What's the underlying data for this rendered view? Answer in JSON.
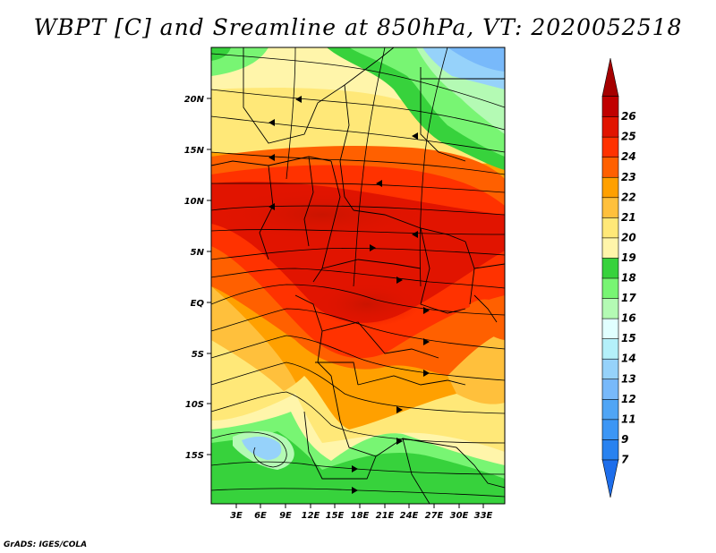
{
  "title": "WBPT [C] and Sreamline at 850hPa, VT: 2020052518",
  "credit": "GrADS: IGES/COLA",
  "lat_labels": [
    "20N",
    "15N",
    "10N",
    "5N",
    "EQ",
    "5S",
    "10S",
    "15S"
  ],
  "lon_labels": [
    "3E",
    "6E",
    "9E",
    "12E",
    "15E",
    "18E",
    "21E",
    "24E",
    "27E",
    "30E",
    "33E"
  ],
  "colorbar": {
    "labels": [
      "7",
      "9",
      "11",
      "12",
      "13",
      "14",
      "15",
      "16",
      "17",
      "18",
      "19",
      "20",
      "21",
      "22",
      "23",
      "24",
      "25",
      "26"
    ],
    "colors": [
      "#1e6eeb",
      "#2882f0",
      "#3c96f5",
      "#50a5f5",
      "#78b9fa",
      "#96d2fa",
      "#b4f0fa",
      "#e1ffff",
      "#b4fab4",
      "#78f573",
      "#37d23c",
      "#fff5aa",
      "#ffe878",
      "#ffc03c",
      "#ffa000",
      "#ff6000",
      "#ff3200",
      "#e11400",
      "#c00000",
      "#a50000"
    ]
  }
}
